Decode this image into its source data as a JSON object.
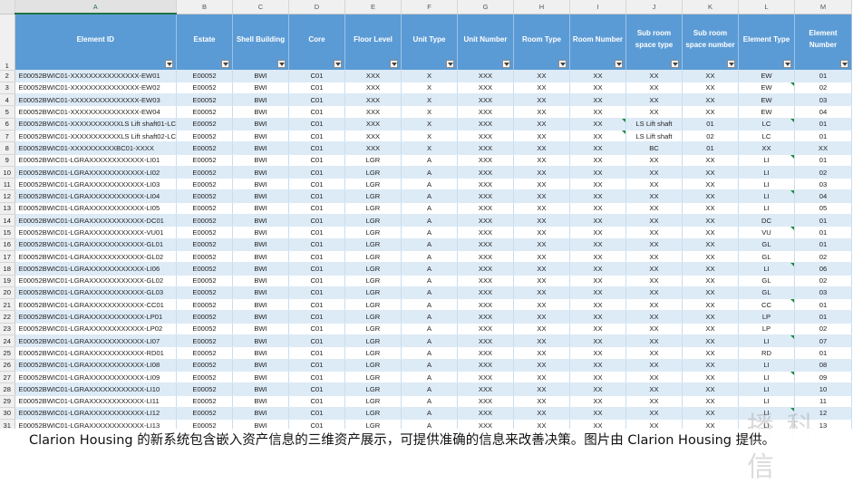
{
  "columns": [
    "",
    "A",
    "B",
    "C",
    "D",
    "E",
    "F",
    "G",
    "H",
    "I",
    "J",
    "K",
    "L",
    "M"
  ],
  "header_row_number": "1",
  "headers": [
    "Element ID",
    "Estate",
    "Shell Building",
    "Core",
    "Floor Level",
    "Unit Type",
    "Unit Number",
    "Room Type",
    "Room Number",
    "Sub room space type",
    "Sub room space number",
    "Element Type",
    "Element Number"
  ],
  "rows": [
    {
      "n": "2",
      "c": [
        "E00052BWIC01-XXXXXXXXXXXXXXX-EW01",
        "E00052",
        "BWI",
        "C01",
        "XXX",
        "X",
        "XXX",
        "XX",
        "XX",
        "XX",
        "XX",
        "EW",
        "01"
      ]
    },
    {
      "n": "3",
      "c": [
        "E00052BWIC01-XXXXXXXXXXXXXXX-EW02",
        "E00052",
        "BWI",
        "C01",
        "XXX",
        "X",
        "XXX",
        "XX",
        "XX",
        "XX",
        "XX",
        "EW",
        "02"
      ]
    },
    {
      "n": "4",
      "c": [
        "E00052BWIC01-XXXXXXXXXXXXXXX-EW03",
        "E00052",
        "BWI",
        "C01",
        "XXX",
        "X",
        "XXX",
        "XX",
        "XX",
        "XX",
        "XX",
        "EW",
        "03"
      ]
    },
    {
      "n": "5",
      "c": [
        "E00052BWIC01-XXXXXXXXXXXXXXX-EW04",
        "E00052",
        "BWI",
        "C01",
        "XXX",
        "X",
        "XXX",
        "XX",
        "XX",
        "XX",
        "XX",
        "EW",
        "04"
      ]
    },
    {
      "n": "6",
      "c": [
        "E00052BWIC01-XXXXXXXXXXXLS Lift shaft01-LC",
        "E00052",
        "BWI",
        "C01",
        "XXX",
        "X",
        "XXX",
        "XX",
        "XX",
        "LS Lift shaft",
        "01",
        "LC",
        "01"
      ]
    },
    {
      "n": "7",
      "c": [
        "E00052BWIC01-XXXXXXXXXXXLS Lift shaft02-LC",
        "E00052",
        "BWI",
        "C01",
        "XXX",
        "X",
        "XXX",
        "XX",
        "XX",
        "LS Lift shaft",
        "02",
        "LC",
        "01"
      ]
    },
    {
      "n": "8",
      "c": [
        "E00052BWIC01-XXXXXXXXXXBC01-XXXX",
        "E00052",
        "BWI",
        "C01",
        "XXX",
        "X",
        "XXX",
        "XX",
        "XX",
        "BC",
        "01",
        "XX",
        "XX"
      ]
    },
    {
      "n": "9",
      "c": [
        "E00052BWIC01-LGRAXXXXXXXXXXXX-LI01",
        "E00052",
        "BWI",
        "C01",
        "LGR",
        "A",
        "XXX",
        "XX",
        "XX",
        "XX",
        "XX",
        "LI",
        "01"
      ]
    },
    {
      "n": "10",
      "c": [
        "E00052BWIC01-LGRAXXXXXXXXXXXX-LI02",
        "E00052",
        "BWI",
        "C01",
        "LGR",
        "A",
        "XXX",
        "XX",
        "XX",
        "XX",
        "XX",
        "LI",
        "02"
      ]
    },
    {
      "n": "11",
      "c": [
        "E00052BWIC01-LGRAXXXXXXXXXXXX-LI03",
        "E00052",
        "BWI",
        "C01",
        "LGR",
        "A",
        "XXX",
        "XX",
        "XX",
        "XX",
        "XX",
        "LI",
        "03"
      ]
    },
    {
      "n": "12",
      "c": [
        "E00052BWIC01-LGRAXXXXXXXXXXXX-LI04",
        "E00052",
        "BWI",
        "C01",
        "LGR",
        "A",
        "XXX",
        "XX",
        "XX",
        "XX",
        "XX",
        "LI",
        "04"
      ]
    },
    {
      "n": "13",
      "c": [
        "E00052BWIC01-LGRAXXXXXXXXXXXX-LI05",
        "E00052",
        "BWI",
        "C01",
        "LGR",
        "A",
        "XXX",
        "XX",
        "XX",
        "XX",
        "XX",
        "LI",
        "05"
      ]
    },
    {
      "n": "14",
      "c": [
        "E00052BWIC01-LGRAXXXXXXXXXXXX-DC01",
        "E00052",
        "BWI",
        "C01",
        "LGR",
        "A",
        "XXX",
        "XX",
        "XX",
        "XX",
        "XX",
        "DC",
        "01"
      ]
    },
    {
      "n": "15",
      "c": [
        "E00052BWIC01-LGRAXXXXXXXXXXXX-VU01",
        "E00052",
        "BWI",
        "C01",
        "LGR",
        "A",
        "XXX",
        "XX",
        "XX",
        "XX",
        "XX",
        "VU",
        "01"
      ]
    },
    {
      "n": "16",
      "c": [
        "E00052BWIC01-LGRAXXXXXXXXXXXX-GL01",
        "E00052",
        "BWI",
        "C01",
        "LGR",
        "A",
        "XXX",
        "XX",
        "XX",
        "XX",
        "XX",
        "GL",
        "01"
      ]
    },
    {
      "n": "17",
      "c": [
        "E00052BWIC01-LGRAXXXXXXXXXXXX-GL02",
        "E00052",
        "BWI",
        "C01",
        "LGR",
        "A",
        "XXX",
        "XX",
        "XX",
        "XX",
        "XX",
        "GL",
        "02"
      ]
    },
    {
      "n": "18",
      "c": [
        "E00052BWIC01-LGRAXXXXXXXXXXXX-LI06",
        "E00052",
        "BWI",
        "C01",
        "LGR",
        "A",
        "XXX",
        "XX",
        "XX",
        "XX",
        "XX",
        "LI",
        "06"
      ]
    },
    {
      "n": "19",
      "c": [
        "E00052BWIC01-LGRAXXXXXXXXXXXX-GL02",
        "E00052",
        "BWI",
        "C01",
        "LGR",
        "A",
        "XXX",
        "XX",
        "XX",
        "XX",
        "XX",
        "GL",
        "02"
      ]
    },
    {
      "n": "20",
      "c": [
        "E00052BWIC01-LGRAXXXXXXXXXXXX-GL03",
        "E00052",
        "BWI",
        "C01",
        "LGR",
        "A",
        "XXX",
        "XX",
        "XX",
        "XX",
        "XX",
        "GL",
        "03"
      ]
    },
    {
      "n": "21",
      "c": [
        "E00052BWIC01-LGRAXXXXXXXXXXXX-CC01",
        "E00052",
        "BWI",
        "C01",
        "LGR",
        "A",
        "XXX",
        "XX",
        "XX",
        "XX",
        "XX",
        "CC",
        "01"
      ]
    },
    {
      "n": "22",
      "c": [
        "E00052BWIC01-LGRAXXXXXXXXXXXX-LP01",
        "E00052",
        "BWI",
        "C01",
        "LGR",
        "A",
        "XXX",
        "XX",
        "XX",
        "XX",
        "XX",
        "LP",
        "01"
      ]
    },
    {
      "n": "23",
      "c": [
        "E00052BWIC01-LGRAXXXXXXXXXXXX-LP02",
        "E00052",
        "BWI",
        "C01",
        "LGR",
        "A",
        "XXX",
        "XX",
        "XX",
        "XX",
        "XX",
        "LP",
        "02"
      ]
    },
    {
      "n": "24",
      "c": [
        "E00052BWIC01-LGRAXXXXXXXXXXXX-LI07",
        "E00052",
        "BWI",
        "C01",
        "LGR",
        "A",
        "XXX",
        "XX",
        "XX",
        "XX",
        "XX",
        "LI",
        "07"
      ]
    },
    {
      "n": "25",
      "c": [
        "E00052BWIC01-LGRAXXXXXXXXXXXX-RD01",
        "E00052",
        "BWI",
        "C01",
        "LGR",
        "A",
        "XXX",
        "XX",
        "XX",
        "XX",
        "XX",
        "RD",
        "01"
      ]
    },
    {
      "n": "26",
      "c": [
        "E00052BWIC01-LGRAXXXXXXXXXXXX-LI08",
        "E00052",
        "BWI",
        "C01",
        "LGR",
        "A",
        "XXX",
        "XX",
        "XX",
        "XX",
        "XX",
        "LI",
        "08"
      ]
    },
    {
      "n": "27",
      "c": [
        "E00052BWIC01-LGRAXXXXXXXXXXXX-LI09",
        "E00052",
        "BWI",
        "C01",
        "LGR",
        "A",
        "XXX",
        "XX",
        "XX",
        "XX",
        "XX",
        "LI",
        "09"
      ]
    },
    {
      "n": "28",
      "c": [
        "E00052BWIC01-LGRAXXXXXXXXXXXX-LI10",
        "E00052",
        "BWI",
        "C01",
        "LGR",
        "A",
        "XXX",
        "XX",
        "XX",
        "XX",
        "XX",
        "LI",
        "10"
      ]
    },
    {
      "n": "29",
      "c": [
        "E00052BWIC01-LGRAXXXXXXXXXXXX-LI11",
        "E00052",
        "BWI",
        "C01",
        "LGR",
        "A",
        "XXX",
        "XX",
        "XX",
        "XX",
        "XX",
        "LI",
        "11"
      ]
    },
    {
      "n": "30",
      "c": [
        "E00052BWIC01-LGRAXXXXXXXXXXXX-LI12",
        "E00052",
        "BWI",
        "C01",
        "LGR",
        "A",
        "XXX",
        "XX",
        "XX",
        "XX",
        "XX",
        "LI",
        "12"
      ]
    },
    {
      "n": "31",
      "c": [
        "E00052BWIC01-LGRAXXXXXXXXXXXX-LI13",
        "E00052",
        "BWI",
        "C01",
        "LGR",
        "A",
        "XXX",
        "XX",
        "XX",
        "XX",
        "XX",
        "LI",
        "13"
      ]
    }
  ],
  "caption": "Clarion Housing 的新系统包含嵌入资产信息的三维资产展示，可提供准确的信息来改善决策。图片由 Clarion Housing 提供。",
  "watermark": "播 科 信",
  "colors": {
    "header_fill": "#5b9bd5",
    "band_fill": "#ddebf7",
    "cell_marker": "#1e8b3c"
  }
}
